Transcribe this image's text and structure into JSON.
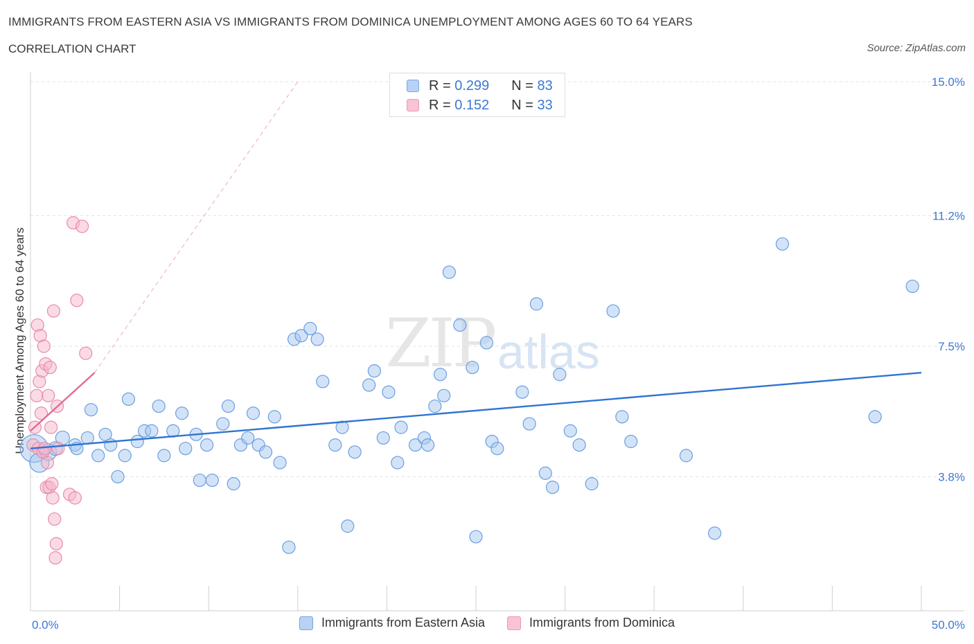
{
  "chart_data": {
    "type": "scatter",
    "title": "IMMIGRANTS FROM EASTERN ASIA VS IMMIGRANTS FROM DOMINICA UNEMPLOYMENT AMONG AGES 60 TO 64 YEARS",
    "subtitle": "CORRELATION CHART",
    "source": "Source: ZipAtlas.com",
    "xlabel": "",
    "ylabel": "Unemployment Among Ages 60 to 64 years",
    "xlim": [
      0,
      50
    ],
    "ylim": [
      0,
      15
    ],
    "x_tick_labels": [
      "0.0%",
      "50.0%"
    ],
    "y_ticks": [
      {
        "value": 3.8,
        "label": "3.8%"
      },
      {
        "value": 7.5,
        "label": "7.5%"
      },
      {
        "value": 11.2,
        "label": "11.2%"
      },
      {
        "value": 15.0,
        "label": "15.0%"
      }
    ],
    "grid": true,
    "legend": [
      {
        "r_label": "R =",
        "r": "0.299",
        "n_label": "N =",
        "n": "83"
      },
      {
        "r_label": "R =",
        "r": "0.152",
        "n_label": "N =",
        "n": "33"
      }
    ],
    "series": [
      {
        "name": "Immigrants from Eastern Asia",
        "color": "#a8c8f0",
        "stroke": "#6a9ee0",
        "trend_color": "#2f74d0",
        "trend": [
          [
            0,
            4.6
          ],
          [
            50,
            6.75
          ]
        ],
        "points": [
          [
            0.2,
            4.6,
            20
          ],
          [
            0.5,
            4.2,
            14
          ],
          [
            1.0,
            4.5,
            12
          ],
          [
            1.4,
            4.6,
            10
          ],
          [
            1.8,
            4.9,
            10
          ],
          [
            2.5,
            4.7,
            9
          ],
          [
            2.6,
            4.6,
            9
          ],
          [
            3.2,
            4.9,
            9
          ],
          [
            3.4,
            5.7,
            9
          ],
          [
            3.8,
            4.4,
            9
          ],
          [
            4.2,
            5.0,
            9
          ],
          [
            4.5,
            4.7,
            9
          ],
          [
            4.9,
            3.8,
            9
          ],
          [
            5.3,
            4.4,
            9
          ],
          [
            5.5,
            6.0,
            9
          ],
          [
            6.0,
            4.8,
            9
          ],
          [
            6.4,
            5.1,
            9
          ],
          [
            6.8,
            5.1,
            9
          ],
          [
            7.2,
            5.8,
            9
          ],
          [
            7.5,
            4.4,
            9
          ],
          [
            8.0,
            5.1,
            9
          ],
          [
            8.5,
            5.6,
            9
          ],
          [
            8.7,
            4.6,
            9
          ],
          [
            9.3,
            5.0,
            9
          ],
          [
            9.5,
            3.7,
            9
          ],
          [
            9.9,
            4.7,
            9
          ],
          [
            10.2,
            3.7,
            9
          ],
          [
            10.8,
            5.3,
            9
          ],
          [
            11.1,
            5.8,
            9
          ],
          [
            11.4,
            3.6,
            9
          ],
          [
            11.8,
            4.7,
            9
          ],
          [
            12.2,
            4.9,
            9
          ],
          [
            12.5,
            5.6,
            9
          ],
          [
            12.8,
            4.7,
            9
          ],
          [
            13.2,
            4.5,
            9
          ],
          [
            13.7,
            5.5,
            9
          ],
          [
            14.0,
            4.2,
            9
          ],
          [
            14.5,
            1.8,
            9
          ],
          [
            14.8,
            7.7,
            9
          ],
          [
            15.2,
            7.8,
            9
          ],
          [
            15.7,
            8.0,
            9
          ],
          [
            16.1,
            7.7,
            9
          ],
          [
            16.4,
            6.5,
            9
          ],
          [
            17.1,
            4.7,
            9
          ],
          [
            17.5,
            5.2,
            9
          ],
          [
            17.8,
            2.4,
            9
          ],
          [
            18.2,
            4.5,
            9
          ],
          [
            19.0,
            6.4,
            9
          ],
          [
            19.3,
            6.8,
            9
          ],
          [
            19.8,
            4.9,
            9
          ],
          [
            20.1,
            6.2,
            9
          ],
          [
            20.6,
            4.2,
            9
          ],
          [
            20.8,
            5.2,
            9
          ],
          [
            21.6,
            4.7,
            9
          ],
          [
            22.1,
            4.9,
            9
          ],
          [
            22.3,
            4.7,
            9
          ],
          [
            22.7,
            5.8,
            9
          ],
          [
            23.0,
            6.7,
            9
          ],
          [
            23.2,
            6.1,
            9
          ],
          [
            23.5,
            9.6,
            9
          ],
          [
            24.1,
            8.1,
            9
          ],
          [
            24.8,
            6.9,
            9
          ],
          [
            25.0,
            2.1,
            9
          ],
          [
            25.6,
            7.6,
            9
          ],
          [
            25.9,
            4.8,
            9
          ],
          [
            26.2,
            4.6,
            9
          ],
          [
            27.6,
            6.2,
            9
          ],
          [
            28.0,
            5.3,
            9
          ],
          [
            28.4,
            8.7,
            9
          ],
          [
            28.9,
            3.9,
            9
          ],
          [
            29.3,
            3.5,
            9
          ],
          [
            29.7,
            6.7,
            9
          ],
          [
            30.3,
            5.1,
            9
          ],
          [
            30.8,
            4.7,
            9
          ],
          [
            31.5,
            3.6,
            9
          ],
          [
            32.7,
            8.5,
            9
          ],
          [
            33.2,
            5.5,
            9
          ],
          [
            33.7,
            4.8,
            9
          ],
          [
            36.8,
            4.4,
            9
          ],
          [
            38.4,
            2.2,
            9
          ],
          [
            42.2,
            10.4,
            9
          ],
          [
            47.4,
            5.5,
            9
          ],
          [
            49.5,
            9.2,
            9
          ]
        ]
      },
      {
        "name": "Immigrants from Dominica",
        "color": "#f6b8cc",
        "stroke": "#e88aaa",
        "trend_color": "#e46a96",
        "trend": [
          [
            0,
            5.1
          ],
          [
            3.6,
            6.75
          ]
        ],
        "trend_ext": [
          [
            3.6,
            6.75
          ],
          [
            15.0,
            15.0
          ]
        ],
        "points": [
          [
            0.15,
            4.7,
            9
          ],
          [
            0.25,
            5.2,
            9
          ],
          [
            0.35,
            6.1,
            9
          ],
          [
            0.4,
            8.1,
            9
          ],
          [
            0.45,
            4.6,
            9
          ],
          [
            0.5,
            6.5,
            9
          ],
          [
            0.55,
            7.8,
            9
          ],
          [
            0.6,
            5.6,
            9
          ],
          [
            0.65,
            6.8,
            9
          ],
          [
            0.7,
            4.5,
            9
          ],
          [
            0.75,
            7.5,
            9
          ],
          [
            0.8,
            4.6,
            9
          ],
          [
            0.85,
            7.0,
            9
          ],
          [
            0.9,
            3.5,
            9
          ],
          [
            0.95,
            4.2,
            9
          ],
          [
            1.0,
            6.1,
            9
          ],
          [
            1.05,
            3.5,
            9
          ],
          [
            1.1,
            6.9,
            9
          ],
          [
            1.15,
            5.2,
            9
          ],
          [
            1.2,
            3.6,
            9
          ],
          [
            1.25,
            3.2,
            9
          ],
          [
            1.3,
            8.5,
            9
          ],
          [
            1.35,
            2.6,
            9
          ],
          [
            1.4,
            1.5,
            9
          ],
          [
            1.45,
            1.9,
            9
          ],
          [
            1.5,
            5.8,
            9
          ],
          [
            1.55,
            4.6,
            9
          ],
          [
            2.2,
            3.3,
            9
          ],
          [
            2.4,
            11.0,
            9
          ],
          [
            2.5,
            3.2,
            9
          ],
          [
            2.6,
            8.8,
            9
          ],
          [
            2.9,
            10.9,
            9
          ],
          [
            3.1,
            7.3,
            9
          ]
        ]
      }
    ]
  },
  "watermark": {
    "zip": "ZIP",
    "atlas": "atlas"
  }
}
